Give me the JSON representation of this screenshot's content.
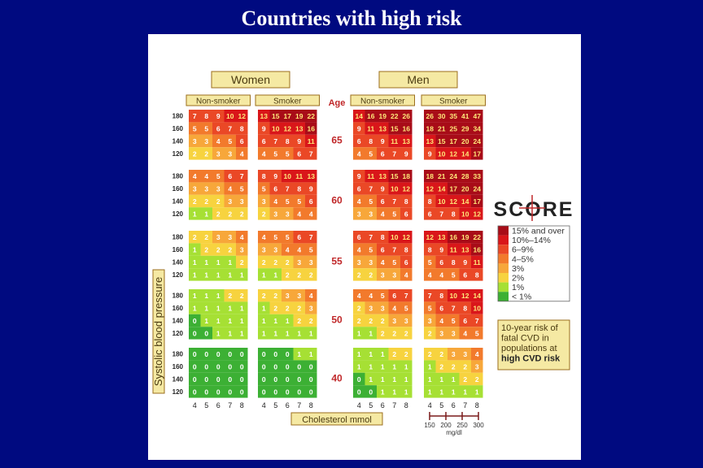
{
  "title": "Countries with high risk",
  "chart_data": {
    "type": "heatmap",
    "sexes": [
      "Women",
      "Men"
    ],
    "smoking_labels": [
      "Non-smoker",
      "Smoker",
      "Non-smoker",
      "Smoker"
    ],
    "age_heading": "Age",
    "ages": [
      "65",
      "60",
      "55",
      "50",
      "40"
    ],
    "sbp_ticks": [
      "180",
      "160",
      "140",
      "120"
    ],
    "chol_ticks": [
      "4",
      "5",
      "6",
      "7",
      "8"
    ],
    "ylabel": "Systolic blood pressure",
    "xlabel": "Cholesterol mmol",
    "mgdl_ticks": [
      "150",
      "200",
      "250",
      "300"
    ],
    "mgdl_label": "mg/dl",
    "logo": "SCORE",
    "legend": [
      {
        "label": "15% and over",
        "color": "#a80c18"
      },
      {
        "label": "10%–14%",
        "color": "#d9161a"
      },
      {
        "label": "6–9%",
        "color": "#ea4826"
      },
      {
        "label": "4–5%",
        "color": "#f27a2c"
      },
      {
        "label": "3%",
        "color": "#f7a73a"
      },
      {
        "label": "2%",
        "color": "#f7d33f"
      },
      {
        "label": "1%",
        "color": "#a6e034"
      },
      {
        "label": "< 1%",
        "color": "#3cb034"
      }
    ],
    "legend_caption": [
      "10-year risk of",
      "fatal CVD in",
      "populations at"
    ],
    "legend_caption_bold": "high CVD risk",
    "grid": [
      [
        [
          [
            7,
            8,
            9,
            10,
            12
          ],
          [
            5,
            5,
            6,
            7,
            8
          ],
          [
            3,
            3,
            4,
            5,
            6
          ],
          [
            2,
            2,
            3,
            3,
            4
          ]
        ],
        [
          [
            13,
            15,
            17,
            19,
            22
          ],
          [
            9,
            10,
            12,
            13,
            16
          ],
          [
            6,
            7,
            8,
            9,
            11
          ],
          [
            4,
            5,
            5,
            6,
            7
          ]
        ],
        [
          [
            14,
            16,
            19,
            22,
            26
          ],
          [
            9,
            11,
            13,
            15,
            16
          ],
          [
            6,
            8,
            9,
            11,
            13
          ],
          [
            4,
            5,
            6,
            7,
            9
          ]
        ],
        [
          [
            26,
            30,
            35,
            41,
            47
          ],
          [
            18,
            21,
            25,
            29,
            34
          ],
          [
            13,
            15,
            17,
            20,
            24
          ],
          [
            9,
            10,
            12,
            14,
            17
          ]
        ]
      ],
      [
        [
          [
            4,
            4,
            5,
            6,
            7
          ],
          [
            3,
            3,
            3,
            4,
            5
          ],
          [
            2,
            2,
            2,
            3,
            3
          ],
          [
            1,
            1,
            2,
            2,
            2
          ]
        ],
        [
          [
            8,
            9,
            10,
            11,
            13
          ],
          [
            5,
            6,
            7,
            8,
            9
          ],
          [
            3,
            4,
            5,
            5,
            6
          ],
          [
            2,
            3,
            3,
            4,
            4
          ]
        ],
        [
          [
            9,
            11,
            13,
            15,
            18
          ],
          [
            6,
            7,
            9,
            10,
            12
          ],
          [
            4,
            5,
            6,
            7,
            8
          ],
          [
            3,
            3,
            4,
            5,
            6
          ]
        ],
        [
          [
            18,
            21,
            24,
            28,
            33
          ],
          [
            12,
            14,
            17,
            20,
            24
          ],
          [
            8,
            10,
            12,
            14,
            17
          ],
          [
            6,
            7,
            8,
            10,
            12
          ]
        ]
      ],
      [
        [
          [
            2,
            2,
            3,
            3,
            4
          ],
          [
            1,
            2,
            2,
            2,
            3
          ],
          [
            1,
            1,
            1,
            1,
            2
          ],
          [
            1,
            1,
            1,
            1,
            1
          ]
        ],
        [
          [
            4,
            5,
            5,
            6,
            7
          ],
          [
            3,
            3,
            4,
            4,
            5
          ],
          [
            2,
            2,
            2,
            3,
            3
          ],
          [
            1,
            1,
            2,
            2,
            2
          ]
        ],
        [
          [
            6,
            7,
            8,
            10,
            12
          ],
          [
            4,
            5,
            6,
            7,
            8
          ],
          [
            3,
            3,
            4,
            5,
            6
          ],
          [
            2,
            2,
            3,
            3,
            4
          ]
        ],
        [
          [
            12,
            13,
            16,
            19,
            22
          ],
          [
            8,
            9,
            11,
            13,
            16
          ],
          [
            5,
            6,
            8,
            9,
            11
          ],
          [
            4,
            4,
            5,
            6,
            8
          ]
        ]
      ],
      [
        [
          [
            1,
            1,
            1,
            2,
            2
          ],
          [
            1,
            1,
            1,
            1,
            1
          ],
          [
            0,
            1,
            1,
            1,
            1
          ],
          [
            0,
            0,
            1,
            1,
            1
          ]
        ],
        [
          [
            2,
            2,
            3,
            3,
            4
          ],
          [
            1,
            2,
            2,
            2,
            3
          ],
          [
            1,
            1,
            1,
            2,
            2
          ],
          [
            1,
            1,
            1,
            1,
            1
          ]
        ],
        [
          [
            4,
            4,
            5,
            6,
            7
          ],
          [
            2,
            3,
            3,
            4,
            5
          ],
          [
            2,
            2,
            2,
            3,
            3
          ],
          [
            1,
            1,
            2,
            2,
            2
          ]
        ],
        [
          [
            7,
            8,
            10,
            12,
            14
          ],
          [
            5,
            6,
            7,
            8,
            10
          ],
          [
            3,
            4,
            5,
            6,
            7
          ],
          [
            2,
            3,
            3,
            4,
            5
          ]
        ]
      ],
      [
        [
          [
            0,
            0,
            0,
            0,
            0
          ],
          [
            0,
            0,
            0,
            0,
            0
          ],
          [
            0,
            0,
            0,
            0,
            0
          ],
          [
            0,
            0,
            0,
            0,
            0
          ]
        ],
        [
          [
            0,
            0,
            0,
            1,
            1
          ],
          [
            0,
            0,
            0,
            0,
            0
          ],
          [
            0,
            0,
            0,
            0,
            0
          ],
          [
            0,
            0,
            0,
            0,
            0
          ]
        ],
        [
          [
            1,
            1,
            1,
            2,
            2
          ],
          [
            1,
            1,
            1,
            1,
            1
          ],
          [
            0,
            1,
            1,
            1,
            1
          ],
          [
            0,
            0,
            1,
            1,
            1
          ]
        ],
        [
          [
            2,
            2,
            3,
            3,
            4
          ],
          [
            1,
            2,
            2,
            2,
            3
          ],
          [
            1,
            1,
            1,
            2,
            2
          ],
          [
            1,
            1,
            1,
            1,
            1
          ]
        ]
      ]
    ]
  }
}
